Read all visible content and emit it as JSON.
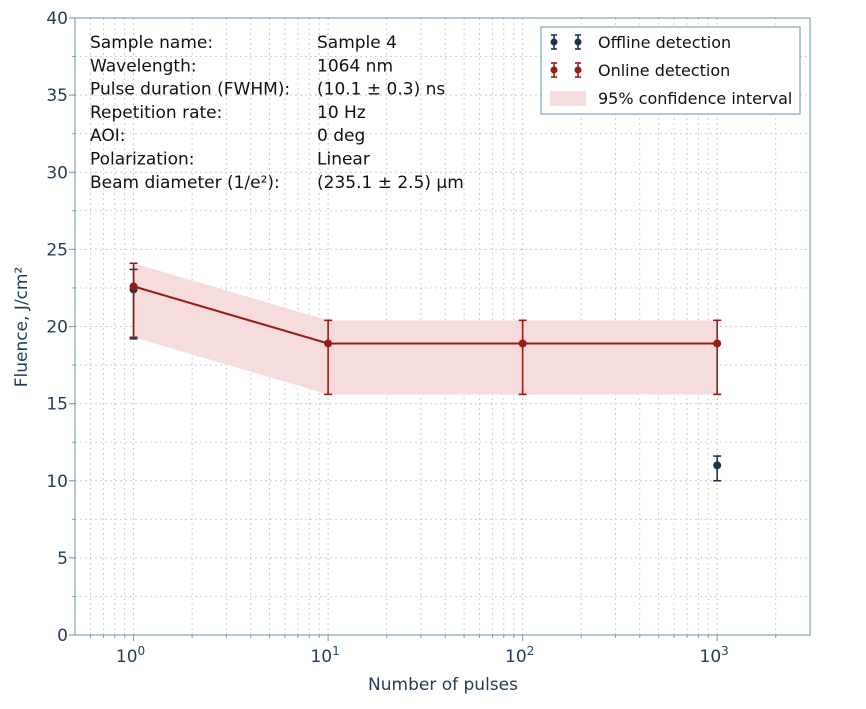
{
  "chart_data": {
    "type": "scatter",
    "x_scale": "log",
    "xlabel": "Number of pulses",
    "ylabel": "Fluence, J/cm²",
    "xlim": [
      0.5,
      3000
    ],
    "ylim": [
      0,
      40
    ],
    "grid": true,
    "legend_position": "top-right",
    "x_ticks": [
      {
        "value": 1,
        "base": "10",
        "exp": "0"
      },
      {
        "value": 10,
        "base": "10",
        "exp": "1"
      },
      {
        "value": 100,
        "base": "10",
        "exp": "2"
      },
      {
        "value": 1000,
        "base": "10",
        "exp": "3"
      }
    ],
    "y_ticks": [
      0,
      5,
      10,
      15,
      20,
      25,
      30,
      35,
      40
    ],
    "series": [
      {
        "name": "Offline detection",
        "color": "#1a3550",
        "style": "points-with-errorbars",
        "points": [
          {
            "x": 1,
            "y": 22.4,
            "err_low": 19.2,
            "err_high": 23.7
          },
          {
            "x": 1000,
            "y": 11.0,
            "err_low": 10.0,
            "err_high": 11.6
          }
        ]
      },
      {
        "name": "Online detection",
        "color": "#9b1b14",
        "style": "line-with-errorbars",
        "points": [
          {
            "x": 1,
            "y": 22.6,
            "err_low": 19.3,
            "err_high": 24.1
          },
          {
            "x": 10,
            "y": 18.9,
            "err_low": 15.6,
            "err_high": 20.4
          },
          {
            "x": 100,
            "y": 18.9,
            "err_low": 15.6,
            "err_high": 20.4
          },
          {
            "x": 1000,
            "y": 18.9,
            "err_low": 15.6,
            "err_high": 20.4
          }
        ]
      },
      {
        "name": "95% confidence interval",
        "color": "#f6dcdc",
        "style": "band",
        "band": [
          {
            "x": 1,
            "low": 19.3,
            "high": 24.1
          },
          {
            "x": 10,
            "low": 15.6,
            "high": 20.4
          },
          {
            "x": 100,
            "low": 15.6,
            "high": 20.4
          },
          {
            "x": 1000,
            "low": 15.6,
            "high": 20.4
          }
        ]
      }
    ],
    "info_box": [
      {
        "label": "Sample name:",
        "value": "Sample 4"
      },
      {
        "label": "Wavelength:",
        "value": "1064 nm"
      },
      {
        "label": "Pulse duration (FWHM):",
        "value": "(10.1 ± 0.3) ns"
      },
      {
        "label": "Repetition rate:",
        "value": "10 Hz"
      },
      {
        "label": "AOI:",
        "value": "0 deg"
      },
      {
        "label": "Polarization:",
        "value": "Linear"
      },
      {
        "label": "Beam diameter (1/e²):",
        "value": "(235.1 ± 2.5) µm"
      }
    ]
  },
  "colors": {
    "axis": "#7fa3b3",
    "grid": "#c4ccd2",
    "tick_text": "#1f3d5a"
  }
}
